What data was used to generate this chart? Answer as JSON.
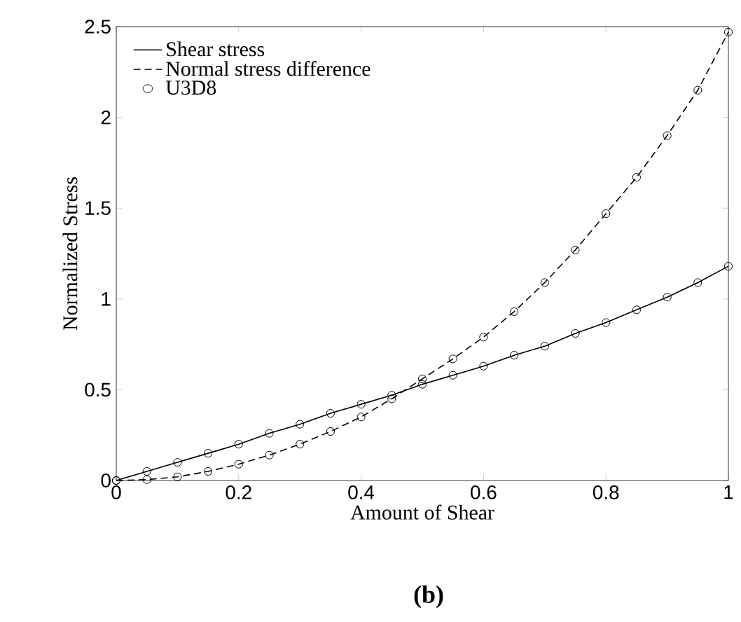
{
  "chart_data": {
    "type": "line",
    "xlabel": "Amount of Shear",
    "ylabel": "Normalized Stress",
    "xlim": [
      0,
      1
    ],
    "ylim": [
      0,
      2.5
    ],
    "xticks": [
      0,
      0.2,
      0.4,
      0.6,
      0.8,
      1
    ],
    "yticks": [
      0,
      0.5,
      1,
      1.5,
      2,
      2.5
    ],
    "grid": false,
    "legend": "top left",
    "annotations": [
      "(b)"
    ],
    "x": [
      0,
      0.05,
      0.1,
      0.15,
      0.2,
      0.25,
      0.3,
      0.35,
      0.4,
      0.45,
      0.5,
      0.55,
      0.6,
      0.65,
      0.7,
      0.75,
      0.8,
      0.85,
      0.9,
      0.95,
      1
    ],
    "series": [
      {
        "name": "Shear stress",
        "color": "#000000",
        "line_style": "solid",
        "marker": "none",
        "values": [
          0,
          0.05,
          0.1,
          0.15,
          0.2,
          0.26,
          0.31,
          0.37,
          0.42,
          0.47,
          0.53,
          0.58,
          0.63,
          0.69,
          0.74,
          0.81,
          0.87,
          0.94,
          1.01,
          1.09,
          1.18
        ]
      },
      {
        "name": "Normal stress difference",
        "color": "#000000",
        "line_style": "dashed",
        "marker": "none",
        "values": [
          0,
          0.005,
          0.02,
          0.05,
          0.09,
          0.14,
          0.2,
          0.27,
          0.35,
          0.45,
          0.56,
          0.67,
          0.79,
          0.93,
          1.09,
          1.27,
          1.47,
          1.67,
          1.9,
          2.15,
          2.47
        ]
      },
      {
        "name": "U3D8",
        "type": "scatter",
        "color": "#000000",
        "marker": "circle",
        "x": [
          0,
          0.05,
          0.1,
          0.15,
          0.2,
          0.25,
          0.3,
          0.35,
          0.4,
          0.45,
          0.5,
          0.55,
          0.6,
          0.65,
          0.7,
          0.75,
          0.8,
          0.85,
          0.9,
          0.95,
          1,
          0,
          0.05,
          0.1,
          0.15,
          0.2,
          0.25,
          0.3,
          0.35,
          0.4,
          0.45,
          0.5,
          0.55,
          0.6,
          0.65,
          0.7,
          0.75,
          0.8,
          0.85,
          0.9,
          0.95,
          1
        ],
        "values": [
          0,
          0.05,
          0.1,
          0.15,
          0.2,
          0.26,
          0.31,
          0.37,
          0.42,
          0.47,
          0.53,
          0.58,
          0.63,
          0.69,
          0.74,
          0.81,
          0.87,
          0.94,
          1.01,
          1.09,
          1.18,
          0,
          0.005,
          0.02,
          0.05,
          0.09,
          0.14,
          0.2,
          0.27,
          0.35,
          0.45,
          0.56,
          0.67,
          0.79,
          0.93,
          1.09,
          1.27,
          1.47,
          1.67,
          1.9,
          2.15,
          2.47
        ]
      }
    ]
  }
}
